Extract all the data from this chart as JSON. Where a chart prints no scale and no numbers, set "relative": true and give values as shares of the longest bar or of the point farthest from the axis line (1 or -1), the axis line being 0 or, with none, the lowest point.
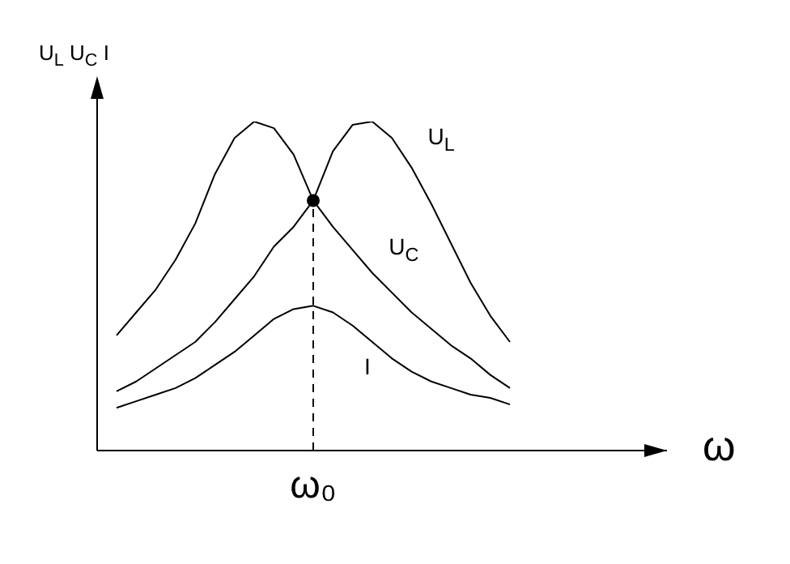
{
  "chart_data": {
    "type": "line",
    "relative": true,
    "xlabel": "ω",
    "ylabel": "U$_{L}$ U$_{C}$ I",
    "marker": "none",
    "categories": [
      null,
      null,
      null,
      null,
      null,
      null,
      null,
      null,
      null,
      null,
      null,
      null,
      null,
      null,
      null,
      null,
      null,
      null,
      null,
      null,
      null
    ],
    "series": [
      {
        "name": "U$_{L}$",
        "color": "#000000",
        "values": [
          0.18,
          0.21,
          0.25,
          0.29,
          0.33,
          0.39,
          0.46,
          0.53,
          0.62,
          0.68,
          0.76,
          0.91,
          0.99,
          1,
          0.95,
          0.86,
          0.75,
          0.63,
          0.51,
          0.41,
          0.33
        ]
      },
      {
        "name": "U$_{C}$",
        "color": "#000000",
        "values": [
          0.35,
          0.42,
          0.49,
          0.58,
          0.69,
          0.84,
          0.95,
          1,
          0.98,
          0.9,
          0.76,
          0.68,
          0.61,
          0.54,
          0.48,
          0.42,
          0.37,
          0.32,
          0.28,
          0.23,
          0.19
        ]
      },
      {
        "name": "I",
        "color": "#000000",
        "values": [
          0.13,
          0.15,
          0.17,
          0.19,
          0.22,
          0.26,
          0.3,
          0.35,
          0.4,
          0.43,
          0.44,
          0.42,
          0.38,
          0.33,
          0.28,
          0.24,
          0.21,
          0.19,
          0.17,
          0.16,
          0.14
        ]
      },
      {
        "type": "line",
        "marker": "circle",
        "color": "#000000",
        "line_style": "dashed",
        "values": [
          null,
          null,
          null,
          null,
          null,
          null,
          null,
          null,
          null,
          null,
          0.76,
          null,
          null,
          null,
          null,
          null,
          null,
          null,
          null,
          null,
          null
        ]
      }
    ],
    "annotations": [
      "ω₀"
    ]
  }
}
